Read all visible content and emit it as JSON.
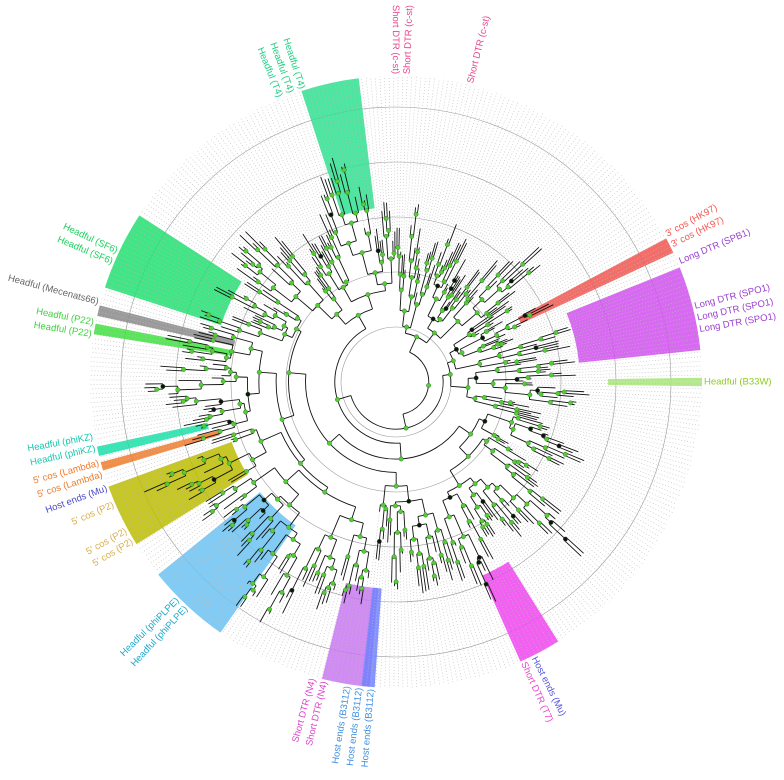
{
  "clades": [
    {
      "id": "t4",
      "labels": [
        "Headful (T4)",
        "Headful (T4)",
        "Headful (T4)"
      ],
      "color": "#2fe08f",
      "text_color": "#1ccf80"
    },
    {
      "id": "cst1",
      "labels": [
        "Short DTR (c-st)",
        "Short DTR (c-st)"
      ],
      "color": "#e8458c",
      "text_color": "#e8458c"
    },
    {
      "id": "cst2",
      "labels": [
        "Short DTR (c-st)"
      ],
      "color": "#e8458c",
      "text_color": "#e8458c"
    },
    {
      "id": "hk97",
      "labels": [
        "3' cos (HK97)",
        "3' cos (HK97)"
      ],
      "color": "#f2554f",
      "text_color": "#f2554f"
    },
    {
      "id": "spb1",
      "labels": [
        "Long DTR (SPB1)"
      ],
      "color": "#9a3fd0",
      "text_color": "#9a3fd0"
    },
    {
      "id": "spo1",
      "labels": [
        "Long DTR (SPO1)",
        "Long DTR (SPO1)",
        "Long DTR (SPO1)"
      ],
      "color": "#d050ee",
      "text_color": "#9a3fd0"
    },
    {
      "id": "b33w",
      "labels": [
        "Headful (B33W)"
      ],
      "color": "#a8e67a",
      "text_color": "#8ccc22"
    },
    {
      "id": "t7",
      "labels": [
        "Host ends (Mu)",
        "Short DTR (T7)"
      ],
      "color": "#ee44ee",
      "text_color": "#ee44cc",
      "text_color2": "#5555dd"
    },
    {
      "id": "n4",
      "labels": [
        "Short DTR (N4)",
        "Short DTR (N4)"
      ],
      "color": "#c878f0",
      "text_color": "#dd44cc"
    },
    {
      "id": "b3112",
      "labels": [
        "Host ends (B3112)",
        "Host ends (B3112)",
        "Host ends (B3112)"
      ],
      "color": "#7080ff",
      "text_color": "#3f8fe0"
    },
    {
      "id": "phiplpe",
      "labels": [
        "Headful (phiPLPE)",
        "Headful (phiPLPE)"
      ],
      "color": "#6cc2f2",
      "text_color": "#1ea8c8"
    },
    {
      "id": "p2a",
      "labels": [
        "5' cos (P2)",
        "5' cos (P2)"
      ],
      "color": "#bcbc00",
      "text_color": "#d4b050"
    },
    {
      "id": "p2b",
      "labels": [
        "5' cos (P2)"
      ],
      "color": "#bcbc00",
      "text_color": "#d4b050"
    },
    {
      "id": "mu",
      "labels": [
        "Host ends (Mu)"
      ],
      "color": "#5050cc",
      "text_color": "#4a4ac8"
    },
    {
      "id": "lambda",
      "labels": [
        "5' cos (Lambda)",
        "5' cos (Lambda)"
      ],
      "color": "#f07a2a",
      "text_color": "#f07a2a"
    },
    {
      "id": "phikz",
      "labels": [
        "Headful (phiKZ)",
        "Headful (phiKZ)"
      ],
      "color": "#15e0a8",
      "text_color": "#15c8b0"
    },
    {
      "id": "p22",
      "labels": [
        "Headful (P22)",
        "Headful (P22)"
      ],
      "color": "#40e040",
      "text_color": "#40d040"
    },
    {
      "id": "mecenats66",
      "labels": [
        "Headful (Mecenats66)"
      ],
      "color": "#8a8a8a",
      "text_color": "#666666"
    },
    {
      "id": "sf6",
      "labels": [
        "Headful (SF6)",
        "Headful (SF6)"
      ],
      "color": "#20e070",
      "text_color": "#20d060"
    }
  ],
  "colors": {
    "branch": "#111111",
    "node": "#55cc33",
    "ring": "#999999",
    "tip": "#bbbbbb"
  }
}
